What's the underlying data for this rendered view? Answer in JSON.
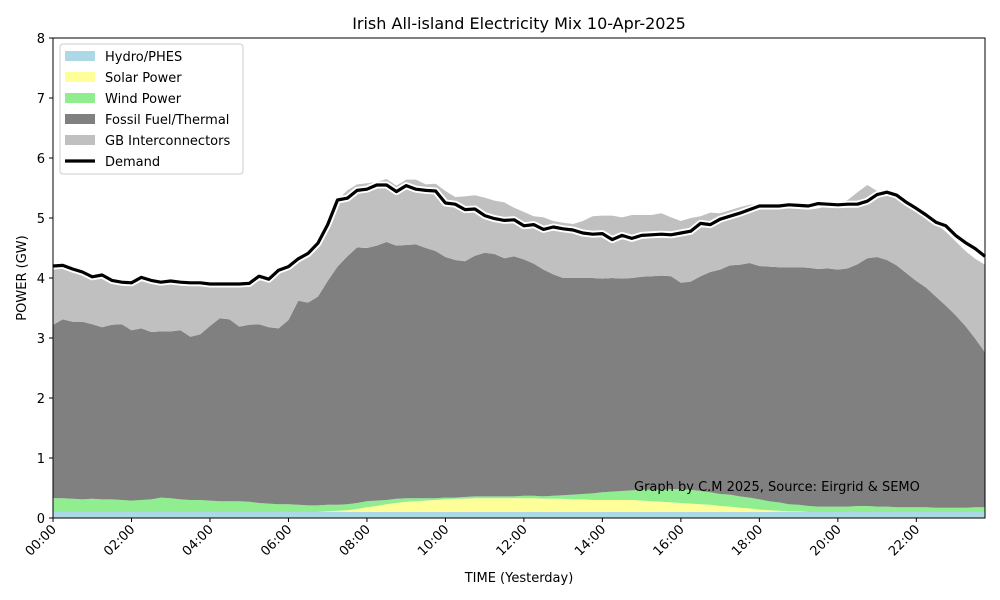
{
  "chart_data": {
    "type": "area",
    "title": "Irish All-island Electricity Mix 10-Apr-2025",
    "xlabel": "TIME (Yesterday)",
    "ylabel": "POWER (GW)",
    "xlim": [
      0,
      23.75
    ],
    "ylim": [
      0,
      8
    ],
    "yticks": [
      0,
      1,
      2,
      3,
      4,
      5,
      6,
      7,
      8
    ],
    "xtick_hours": [
      0,
      2,
      4,
      6,
      8,
      10,
      12,
      14,
      16,
      18,
      20,
      22
    ],
    "xtick_labels": [
      "00:00",
      "02:00",
      "04:00",
      "06:00",
      "08:00",
      "10:00",
      "12:00",
      "14:00",
      "16:00",
      "18:00",
      "20:00",
      "22:00"
    ],
    "legend_position": "top-left",
    "annotation": "Graph by C.M 2025, Source: Eirgrid & SEMO",
    "x_hours": [
      0,
      0.25,
      0.5,
      0.75,
      1,
      1.25,
      1.5,
      1.75,
      2,
      2.25,
      2.5,
      2.75,
      3,
      3.25,
      3.5,
      3.75,
      4,
      4.25,
      4.5,
      4.75,
      5,
      5.25,
      5.5,
      5.75,
      6,
      6.25,
      6.5,
      6.75,
      7,
      7.25,
      7.5,
      7.75,
      8,
      8.25,
      8.5,
      8.75,
      9,
      9.25,
      9.5,
      9.75,
      10,
      10.25,
      10.5,
      10.75,
      11,
      11.25,
      11.5,
      11.75,
      12,
      12.25,
      12.5,
      12.75,
      13,
      13.25,
      13.5,
      13.75,
      14,
      14.25,
      14.5,
      14.75,
      15,
      15.25,
      15.5,
      15.75,
      16,
      16.25,
      16.5,
      16.75,
      17,
      17.25,
      17.5,
      17.75,
      18,
      18.25,
      18.5,
      18.75,
      19,
      19.25,
      19.5,
      19.75,
      20,
      20.25,
      20.5,
      20.75,
      21,
      21.25,
      21.5,
      21.75,
      22,
      22.25,
      22.5,
      22.75,
      23,
      23.25,
      23.5,
      23.75
    ],
    "series": [
      {
        "name": "Hydro/PHES",
        "color": "#add8e6",
        "values": [
          0.1,
          0.1,
          0.1,
          0.1,
          0.1,
          0.1,
          0.1,
          0.1,
          0.1,
          0.1,
          0.1,
          0.1,
          0.1,
          0.1,
          0.1,
          0.1,
          0.1,
          0.1,
          0.1,
          0.1,
          0.1,
          0.1,
          0.1,
          0.1,
          0.1,
          0.1,
          0.1,
          0.1,
          0.1,
          0.1,
          0.1,
          0.1,
          0.1,
          0.1,
          0.1,
          0.1,
          0.1,
          0.1,
          0.1,
          0.1,
          0.1,
          0.1,
          0.1,
          0.1,
          0.1,
          0.1,
          0.1,
          0.1,
          0.1,
          0.1,
          0.1,
          0.1,
          0.1,
          0.1,
          0.1,
          0.1,
          0.1,
          0.1,
          0.1,
          0.1,
          0.1,
          0.1,
          0.1,
          0.1,
          0.1,
          0.1,
          0.1,
          0.1,
          0.1,
          0.1,
          0.1,
          0.1,
          0.1,
          0.1,
          0.1,
          0.1,
          0.1,
          0.1,
          0.1,
          0.1,
          0.1,
          0.1,
          0.1,
          0.1,
          0.1,
          0.1,
          0.1,
          0.1,
          0.1,
          0.1,
          0.1,
          0.1,
          0.1,
          0.1,
          0.1,
          0.1
        ]
      },
      {
        "name": "Solar Power",
        "color": "#ffff99",
        "values": [
          0,
          0,
          0,
          0,
          0,
          0,
          0,
          0,
          0,
          0,
          0,
          0,
          0,
          0,
          0,
          0,
          0,
          0,
          0,
          0,
          0,
          0,
          0,
          0,
          0,
          0,
          0,
          0,
          0.01,
          0.02,
          0.03,
          0.05,
          0.08,
          0.1,
          0.13,
          0.15,
          0.17,
          0.18,
          0.19,
          0.2,
          0.21,
          0.22,
          0.22,
          0.23,
          0.23,
          0.23,
          0.23,
          0.23,
          0.23,
          0.23,
          0.22,
          0.22,
          0.22,
          0.21,
          0.21,
          0.2,
          0.2,
          0.2,
          0.2,
          0.2,
          0.19,
          0.18,
          0.17,
          0.16,
          0.15,
          0.14,
          0.13,
          0.12,
          0.1,
          0.09,
          0.07,
          0.06,
          0.04,
          0.03,
          0.02,
          0.01,
          0.01,
          0,
          0,
          0,
          0,
          0,
          0,
          0,
          0,
          0,
          0,
          0,
          0,
          0,
          0,
          0,
          0,
          0,
          0,
          0
        ]
      },
      {
        "name": "Wind Power",
        "color": "#90ee90",
        "values": [
          0.23,
          0.23,
          0.22,
          0.21,
          0.22,
          0.21,
          0.21,
          0.2,
          0.19,
          0.2,
          0.21,
          0.24,
          0.23,
          0.21,
          0.2,
          0.2,
          0.19,
          0.18,
          0.18,
          0.18,
          0.17,
          0.15,
          0.14,
          0.13,
          0.13,
          0.12,
          0.11,
          0.11,
          0.11,
          0.1,
          0.1,
          0.1,
          0.1,
          0.09,
          0.07,
          0.07,
          0.06,
          0.05,
          0.04,
          0.03,
          0.03,
          0.02,
          0.03,
          0.03,
          0.03,
          0.03,
          0.03,
          0.03,
          0.04,
          0.04,
          0.04,
          0.05,
          0.06,
          0.08,
          0.09,
          0.11,
          0.13,
          0.14,
          0.15,
          0.16,
          0.18,
          0.19,
          0.2,
          0.22,
          0.23,
          0.23,
          0.22,
          0.21,
          0.2,
          0.2,
          0.19,
          0.18,
          0.17,
          0.15,
          0.14,
          0.12,
          0.11,
          0.1,
          0.09,
          0.09,
          0.09,
          0.09,
          0.1,
          0.1,
          0.09,
          0.09,
          0.08,
          0.08,
          0.08,
          0.08,
          0.07,
          0.07,
          0.07,
          0.07,
          0.08,
          0.08
        ]
      },
      {
        "name": "Fossil Fuel/Thermal",
        "color": "#808080",
        "values": [
          2.89,
          2.98,
          2.95,
          2.96,
          2.91,
          2.87,
          2.91,
          2.93,
          2.84,
          2.86,
          2.79,
          2.77,
          2.78,
          2.82,
          2.72,
          2.76,
          2.91,
          3.05,
          3.03,
          2.91,
          2.95,
          2.98,
          2.94,
          2.93,
          3.07,
          3.4,
          3.38,
          3.48,
          3.73,
          3.97,
          4.13,
          4.26,
          4.22,
          4.25,
          4.3,
          4.22,
          4.22,
          4.23,
          4.17,
          4.12,
          4.01,
          3.96,
          3.93,
          4.01,
          4.06,
          4.04,
          3.97,
          4.0,
          3.94,
          3.87,
          3.78,
          3.69,
          3.62,
          3.61,
          3.6,
          3.59,
          3.56,
          3.56,
          3.54,
          3.54,
          3.55,
          3.56,
          3.57,
          3.55,
          3.44,
          3.47,
          3.58,
          3.67,
          3.74,
          3.82,
          3.86,
          3.91,
          3.89,
          3.91,
          3.92,
          3.95,
          3.96,
          3.97,
          3.96,
          3.97,
          3.95,
          3.97,
          4.03,
          4.13,
          4.16,
          4.11,
          4.03,
          3.9,
          3.77,
          3.66,
          3.52,
          3.37,
          3.21,
          3.03,
          2.81,
          2.58
        ]
      },
      {
        "name": "GB Interconnectors",
        "color": "#c0c0c0",
        "values": [
          0.98,
          0.9,
          0.88,
          0.83,
          0.79,
          0.87,
          0.74,
          0.7,
          0.79,
          0.85,
          0.86,
          0.82,
          0.84,
          0.8,
          0.9,
          0.86,
          0.7,
          0.57,
          0.59,
          0.71,
          0.69,
          0.8,
          0.84,
          0.9,
          0.89,
          0.7,
          0.82,
          0.89,
          0.95,
          1.11,
          1.1,
          1.05,
          1.08,
          1.06,
          1.05,
          1.0,
          1.09,
          1.08,
          1.06,
          1.12,
          1.1,
          1.05,
          1.08,
          1.01,
          0.92,
          0.89,
          0.93,
          0.81,
          0.79,
          0.79,
          0.87,
          0.89,
          0.92,
          0.9,
          0.95,
          1.03,
          1.05,
          1.04,
          1.02,
          1.05,
          1.03,
          1.02,
          1.04,
          0.98,
          1.03,
          1.06,
          1.0,
          0.99,
          0.94,
          0.92,
          0.96,
          0.97,
          1.04,
          1.01,
          1.0,
          0.98,
          0.97,
          0.97,
          1.01,
          1.04,
          1.09,
          1.14,
          1.2,
          1.22,
          1.1,
          1.12,
          1.17,
          1.21,
          1.21,
          1.24,
          1.22,
          1.23,
          1.23,
          1.25,
          1.33,
          1.46
        ]
      },
      {
        "name": "Demand",
        "color": "#000000",
        "type": "line",
        "values": [
          4.2,
          4.21,
          4.15,
          4.1,
          4.02,
          4.05,
          3.96,
          3.93,
          3.92,
          4.01,
          3.96,
          3.93,
          3.95,
          3.93,
          3.92,
          3.92,
          3.9,
          3.9,
          3.9,
          3.9,
          3.91,
          4.03,
          3.98,
          4.13,
          4.19,
          4.32,
          4.41,
          4.58,
          4.89,
          5.3,
          5.33,
          5.46,
          5.48,
          5.55,
          5.55,
          5.44,
          5.54,
          5.48,
          5.46,
          5.45,
          5.25,
          5.23,
          5.14,
          5.15,
          5.04,
          4.99,
          4.96,
          4.97,
          4.87,
          4.89,
          4.81,
          4.85,
          4.82,
          4.8,
          4.75,
          4.73,
          4.74,
          4.64,
          4.71,
          4.66,
          4.71,
          4.72,
          4.73,
          4.72,
          4.75,
          4.78,
          4.91,
          4.89,
          4.98,
          5.03,
          5.08,
          5.14,
          5.2,
          5.2,
          5.2,
          5.22,
          5.21,
          5.2,
          5.24,
          5.23,
          5.22,
          5.23,
          5.23,
          5.28,
          5.39,
          5.43,
          5.38,
          5.26,
          5.16,
          5.05,
          4.93,
          4.87,
          4.71,
          4.59,
          4.49,
          4.36
        ]
      }
    ]
  }
}
